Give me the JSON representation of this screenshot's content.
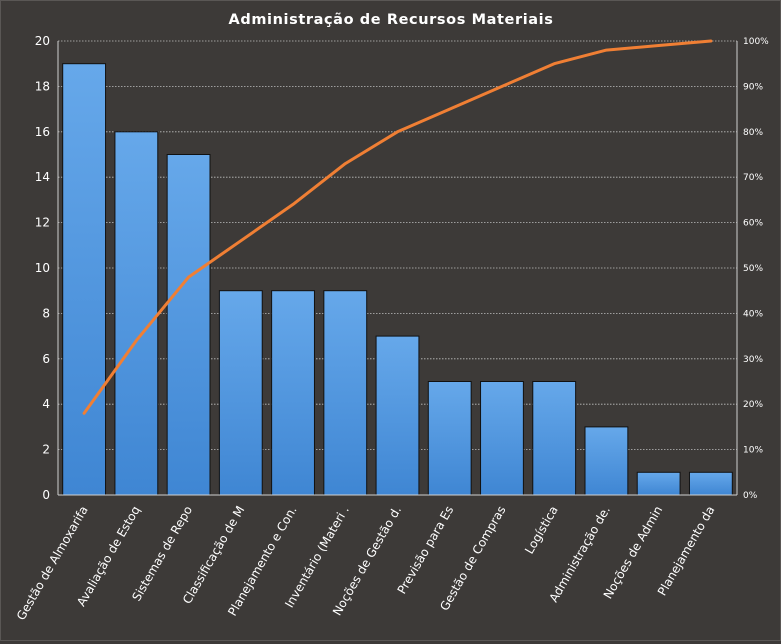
{
  "chart_data": {
    "type": "bar",
    "title": "Administração  de Recursos Materiais",
    "categories": [
      "Gestão de Almoxarifa",
      "Avaliação de Estoq",
      "Sistemas de Repo",
      "Classificação de M",
      "Planejamento e Con.",
      "Inventário (Materi .",
      "Noções de Gestão d.",
      "Previsão para Es",
      "Gestão de Compras",
      "Logística",
      "Administração de.",
      "Noções de Admin",
      "Planejamento da"
    ],
    "series": [
      {
        "type": "bar",
        "axis": "left",
        "values": [
          19,
          16,
          15,
          9,
          9,
          9,
          7,
          5,
          5,
          5,
          3,
          1,
          1
        ]
      },
      {
        "type": "line",
        "axis": "right",
        "values": [
          18,
          34,
          48,
          56,
          64,
          73,
          80,
          85,
          90,
          95,
          98,
          99,
          100
        ]
      }
    ],
    "ylim": [
      0,
      20
    ],
    "yticks": [
      "0",
      "2",
      "4",
      "6",
      "8",
      "10",
      "12",
      "14",
      "16",
      "18",
      "20"
    ],
    "y2lim": [
      0,
      100
    ],
    "y2ticks": [
      "0%",
      "10%",
      "20%",
      "30%",
      "40%",
      "50%",
      "60%",
      "70%",
      "80%",
      "90%",
      "100%"
    ],
    "grid": true,
    "legend": "none",
    "colors": {
      "background": "#3d3a38",
      "bar": "#4a8fd8",
      "line": "#f07f34",
      "grid": "#bfbfbf",
      "text": "#ffffff"
    }
  }
}
